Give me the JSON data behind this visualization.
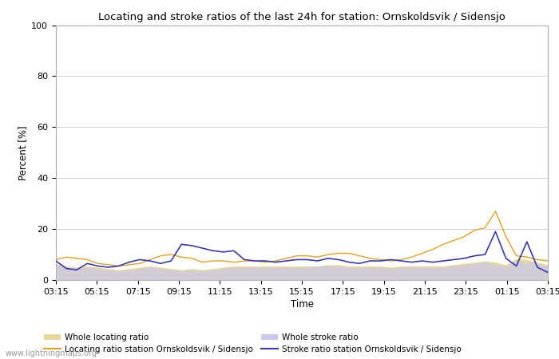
{
  "title": "Locating and stroke ratios of the last 24h for station: Ornskoldsvik / Sidensjo",
  "xlabel": "Time",
  "ylabel": "Percent [%]",
  "ylim": [
    0,
    100
  ],
  "yticks": [
    0,
    20,
    40,
    60,
    80,
    100
  ],
  "x_labels": [
    "03:15",
    "05:15",
    "07:15",
    "09:15",
    "11:15",
    "13:15",
    "15:15",
    "17:15",
    "19:15",
    "21:15",
    "23:15",
    "01:15",
    "03:15"
  ],
  "background_color": "#ffffff",
  "plot_bg_color": "#ffffff",
  "whole_locating_fill_color": "#e8d898",
  "whole_stroke_fill_color": "#c8c8f0",
  "locating_line_color": "#e8a020",
  "stroke_line_color": "#3838b8",
  "watermark": "www.lightningmaps.org",
  "legend": {
    "whole_locating": "Whole locating ratio",
    "whole_stroke": "Whole stroke ratio",
    "locating_station": "Locating ratio station Ornskoldsvik / Sidensjo",
    "stroke_station": "Stroke ratio station Ornskoldsvik / Sidensjo"
  },
  "whole_locating": [
    6.5,
    5.5,
    5.0,
    5.5,
    5.0,
    4.5,
    4.0,
    4.5,
    5.0,
    5.5,
    5.0,
    4.5,
    4.0,
    4.5,
    4.0,
    4.5,
    5.0,
    5.5,
    5.5,
    5.5,
    5.5,
    5.5,
    5.5,
    5.5,
    5.5,
    5.5,
    6.0,
    6.0,
    5.5,
    5.5,
    5.5,
    5.5,
    5.0,
    5.5,
    5.5,
    5.5,
    5.5,
    5.5,
    6.0,
    6.5,
    7.0,
    7.5,
    7.0,
    6.0,
    8.5,
    8.0,
    7.0,
    6.0
  ],
  "whole_stroke": [
    6.0,
    5.0,
    4.5,
    5.0,
    4.5,
    4.0,
    3.5,
    4.0,
    4.5,
    5.0,
    4.5,
    4.0,
    3.5,
    4.0,
    3.5,
    4.0,
    4.5,
    5.0,
    5.0,
    5.0,
    5.0,
    5.0,
    5.0,
    5.0,
    5.0,
    5.5,
    5.5,
    5.5,
    5.0,
    5.0,
    5.0,
    5.0,
    4.5,
    5.0,
    5.0,
    5.0,
    5.0,
    5.0,
    5.5,
    6.0,
    6.5,
    7.0,
    6.0,
    5.5,
    7.5,
    7.0,
    6.5,
    5.5
  ],
  "locating_station": [
    8.0,
    9.0,
    8.5,
    8.0,
    6.5,
    6.0,
    5.5,
    6.0,
    6.5,
    8.0,
    9.5,
    10.0,
    9.0,
    8.5,
    7.0,
    7.5,
    7.5,
    7.0,
    7.5,
    7.5,
    7.0,
    7.5,
    8.5,
    9.5,
    9.5,
    9.0,
    10.0,
    10.5,
    10.5,
    9.5,
    8.5,
    8.0,
    7.5,
    8.0,
    9.0,
    10.5,
    12.0,
    14.0,
    15.5,
    17.0,
    19.5,
    20.5,
    27.0,
    17.0,
    9.5,
    9.0,
    8.0,
    7.5
  ],
  "stroke_station": [
    7.5,
    4.5,
    4.0,
    6.5,
    5.5,
    5.0,
    5.5,
    7.0,
    8.0,
    7.5,
    6.5,
    7.5,
    14.0,
    13.5,
    12.5,
    11.5,
    11.0,
    11.5,
    8.0,
    7.5,
    7.5,
    7.0,
    7.5,
    8.0,
    8.0,
    7.5,
    8.5,
    8.0,
    7.0,
    6.5,
    7.5,
    7.5,
    8.0,
    7.5,
    7.0,
    7.5,
    7.0,
    7.5,
    8.0,
    8.5,
    9.5,
    10.0,
    19.0,
    8.5,
    5.5,
    15.0,
    5.0,
    3.0
  ]
}
